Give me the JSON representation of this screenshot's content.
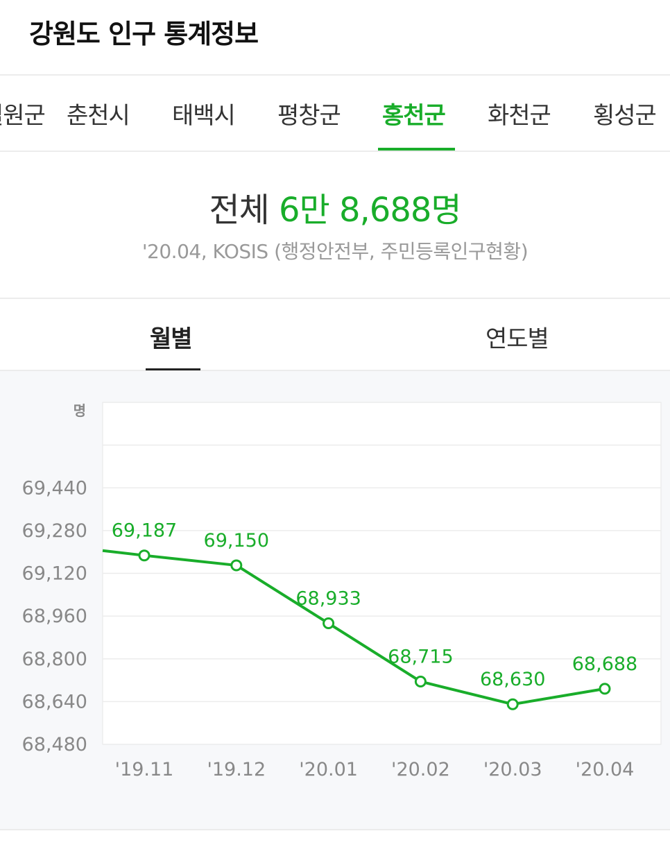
{
  "page": {
    "title": "강원도 인구 통계정보"
  },
  "region_tabs": [
    {
      "label": "철원군",
      "active": false
    },
    {
      "label": "춘천시",
      "active": false
    },
    {
      "label": "태백시",
      "active": false
    },
    {
      "label": "평창군",
      "active": false
    },
    {
      "label": "홍천군",
      "active": true
    },
    {
      "label": "화천군",
      "active": false
    },
    {
      "label": "횡성군",
      "active": false
    }
  ],
  "summary": {
    "total_label": "전체",
    "total_value": "6만 8,688명",
    "source": "'20.04, KOSIS (행정안전부, 주민등록인구현황)"
  },
  "view_tabs": [
    {
      "label": "월별",
      "active": true
    },
    {
      "label": "연도별",
      "active": false
    }
  ],
  "colors": {
    "accent": "#19ad2a",
    "text": "#222222",
    "muted": "#999999",
    "chart_bg": "#f7f8fa"
  },
  "chart_data": {
    "type": "line",
    "unit_label": "명",
    "categories": [
      "'19.11",
      "'19.12",
      "'20.01",
      "'20.02",
      "'20.03",
      "'20.04"
    ],
    "series": [
      {
        "values": [
          69187,
          69150,
          68933,
          68715,
          68630,
          68688
        ],
        "value_labels": [
          "69,187",
          "69,150",
          "68,933",
          "68,715",
          "68,630",
          "68,688"
        ],
        "leading_value": 69205
      }
    ],
    "ylim": [
      68480,
      69760
    ],
    "yticks": [
      68480,
      68640,
      68800,
      68960,
      69120,
      69280,
      69440
    ],
    "ytick_labels": [
      "68,480",
      "68,640",
      "68,800",
      "68,960",
      "69,120",
      "69,280",
      "69,440"
    ],
    "grid": true,
    "legend": "none"
  }
}
